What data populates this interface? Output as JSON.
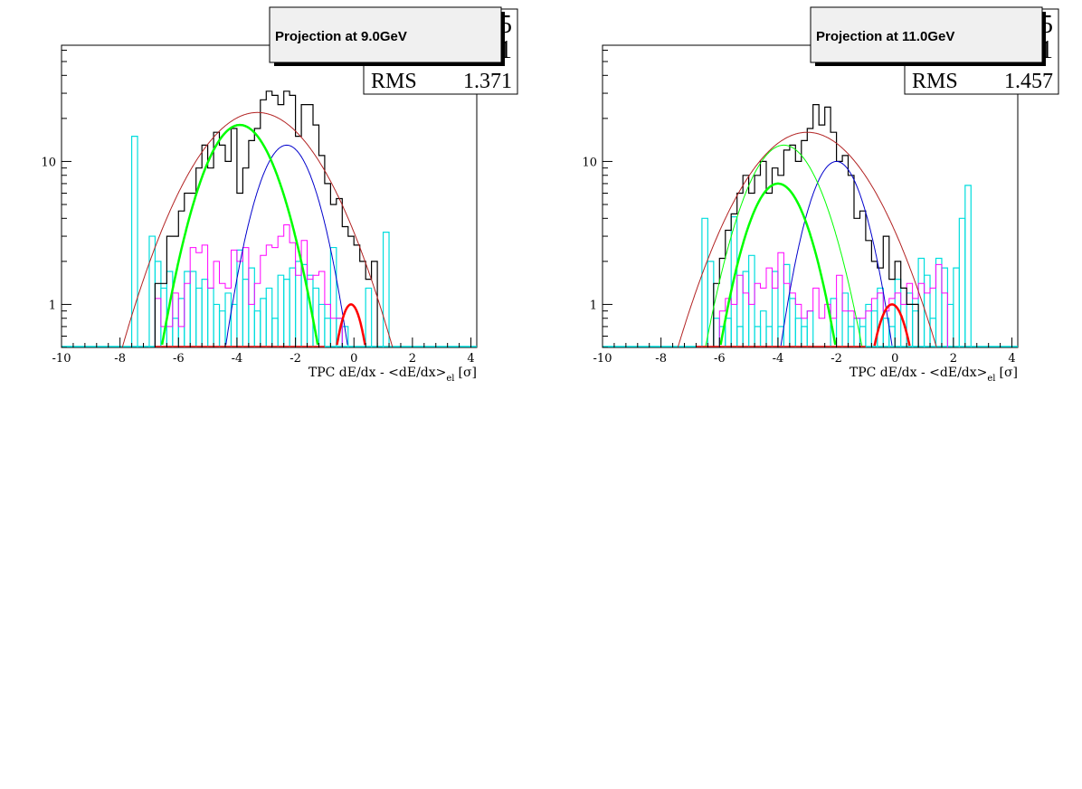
{
  "panels": [
    {
      "title": "Projection at 9.0GeV",
      "stats": {
        "label": "RMS",
        "value": "1.371"
      },
      "hidden_stat_glyphs": [
        "5",
        "1"
      ]
    },
    {
      "title": "Projection at 11.0GeV",
      "stats": {
        "label": "RMS",
        "value": "1.457"
      },
      "hidden_stat_glyphs": [
        "5",
        "1"
      ]
    }
  ],
  "colors": {
    "data": "#000000",
    "total_fit": "#b22222",
    "pion": "#00ff00",
    "kaon": "#0000cc",
    "electron": "#ff0000",
    "proton_template": "#ff00ff",
    "electron_template": "#00dddd"
  },
  "chart_data": [
    {
      "type": "histogram",
      "title": "Projection at 9.0GeV",
      "xlabel_main": "TPC dE/dx - <dE/dx>",
      "xlabel_sub": "el",
      "xlabel_unit": "[σ]",
      "xlim": [
        -10,
        4.2
      ],
      "ylim": [
        0.5,
        65
      ],
      "log_y": true,
      "x_ticks": [
        -10,
        -8,
        -6,
        -4,
        -2,
        0,
        2,
        4
      ],
      "y_ticks": [
        1,
        10
      ],
      "stats": {
        "RMS": 1.371
      },
      "bin_width": 0.2,
      "data_start": -6.8,
      "data": [
        1.4,
        1.4,
        3.0,
        3.0,
        4.5,
        6.0,
        6.0,
        9.0,
        13.0,
        9.0,
        16.0,
        13.0,
        10.0,
        17.0,
        6.0,
        9.0,
        14.0,
        17.0,
        27.0,
        31.0,
        29.0,
        25.0,
        31.0,
        29.0,
        15.0,
        25.0,
        25.0,
        18.0,
        11.0,
        7.0,
        5.0,
        5.5,
        3.5,
        3.0,
        2.6,
        2.0,
        1.5,
        2.0
      ],
      "proton_start": -6.8,
      "proton": [
        1.1,
        0.7,
        0.7,
        1.2,
        0.7,
        1.4,
        2.5,
        2.3,
        2.6,
        1.3,
        2.0,
        1.4,
        1.3,
        2.4,
        2.0,
        2.5,
        1.0,
        1.4,
        2.2,
        2.6,
        2.5,
        3.0,
        3.6,
        2.7,
        1.6,
        2.8,
        1.5,
        1.6,
        1.7,
        1.0,
        0.8,
        0.8
      ],
      "electron_bins": [
        [
          -7.6,
          15.0
        ],
        [
          -7.0,
          3.0
        ],
        [
          -6.8,
          2.0
        ],
        [
          -6.6,
          1.3
        ],
        [
          -6.4,
          1.7
        ],
        [
          -6.2,
          0.8
        ],
        [
          -6.0,
          1.1
        ],
        [
          -5.8,
          1.7
        ],
        [
          -5.6,
          1.7
        ],
        [
          -5.4,
          1.3
        ],
        [
          -5.2,
          1.5
        ],
        [
          -5.0,
          1.3
        ],
        [
          -4.8,
          1.0
        ],
        [
          -4.6,
          0.9
        ],
        [
          -4.4,
          1.2
        ],
        [
          -4.2,
          1.0
        ],
        [
          -4.0,
          2.4
        ],
        [
          -3.8,
          1.5
        ],
        [
          -3.6,
          1.8
        ],
        [
          -3.4,
          0.9
        ],
        [
          -3.2,
          1.1
        ],
        [
          -3.0,
          1.3
        ],
        [
          -2.8,
          0.8
        ],
        [
          -2.6,
          1.6
        ],
        [
          -2.4,
          1.5
        ],
        [
          -2.2,
          1.8
        ],
        [
          -2.0,
          2.0
        ],
        [
          -1.8,
          1.9
        ],
        [
          -1.6,
          1.6
        ],
        [
          -1.4,
          1.3
        ],
        [
          -1.2,
          1.0
        ],
        [
          -1.0,
          0.8
        ],
        [
          -0.8,
          2.5
        ],
        [
          -0.6,
          0.8
        ],
        [
          -0.4,
          0.7
        ],
        [
          0.4,
          1.3
        ],
        [
          1.0,
          3.2
        ]
      ],
      "fits": {
        "total": {
          "mean": -3.3,
          "sigma": 1.68,
          "amplitude": 22
        },
        "pion": {
          "mean": -3.9,
          "sigma": 1.0,
          "amplitude": 18
        },
        "kaon": {
          "mean": -2.3,
          "sigma": 0.82,
          "amplitude": 13
        },
        "electron": {
          "mean": -0.1,
          "sigma": 0.42,
          "amplitude": 1.0
        }
      }
    },
    {
      "type": "histogram",
      "title": "Projection at 11.0GeV",
      "xlabel_main": "TPC dE/dx - <dE/dx>",
      "xlabel_sub": "el",
      "xlabel_unit": "[σ]",
      "xlim": [
        -10,
        4.2
      ],
      "ylim": [
        0.5,
        65
      ],
      "log_y": true,
      "x_ticks": [
        -10,
        -8,
        -6,
        -4,
        -2,
        0,
        2,
        4
      ],
      "y_ticks": [
        1,
        10
      ],
      "stats": {
        "RMS": 1.457
      },
      "bin_width": 0.2,
      "data_start": -6.2,
      "data": [
        1.4,
        2.1,
        3.3,
        4.3,
        6.0,
        8.0,
        6.0,
        8.0,
        10.0,
        6.0,
        9.0,
        8.0,
        12.0,
        13.0,
        10.0,
        14.0,
        17.0,
        25.0,
        18.0,
        24.0,
        16.0,
        10.0,
        11.0,
        8.0,
        4.0,
        4.5,
        2.8,
        2.0,
        1.8,
        3.0,
        1.5,
        2.0,
        1.3,
        1.0,
        1.0
      ],
      "proton_start": -6.0,
      "proton": [
        0.9,
        1.1,
        1.0,
        1.6,
        1.2,
        1.0,
        1.4,
        1.3,
        1.8,
        1.3,
        2.3,
        1.4,
        1.2,
        1.0,
        0.8,
        0.9,
        1.3,
        0.8,
        1.0,
        0.8,
        1.6,
        0.9,
        0.9,
        0.8,
        0.8,
        0.9,
        1.1,
        1.2,
        0.9,
        1.1,
        1.2,
        1.0,
        1.4,
        1.1,
        1.4,
        1.2,
        1.3,
        1.9,
        1.2
      ],
      "electron_bins": [
        [
          -6.6,
          4.0
        ],
        [
          -6.4,
          2.0
        ],
        [
          -6.2,
          0.8
        ],
        [
          -6.0,
          0.7
        ],
        [
          -5.8,
          0.8
        ],
        [
          -5.6,
          4.1
        ],
        [
          -5.4,
          0.7
        ],
        [
          -5.2,
          1.7
        ],
        [
          -5.0,
          2.2
        ],
        [
          -4.8,
          0.7
        ],
        [
          -4.6,
          0.9
        ],
        [
          -4.4,
          0.7
        ],
        [
          -4.2,
          1.7
        ],
        [
          -4.0,
          0.7
        ],
        [
          -3.8,
          1.9
        ],
        [
          -3.6,
          1.1
        ],
        [
          -3.4,
          0.8
        ],
        [
          -3.2,
          0.7
        ],
        [
          -3.0,
          0.9
        ],
        [
          -2.2,
          1.1
        ],
        [
          -1.8,
          1.2
        ],
        [
          -1.6,
          0.7
        ],
        [
          -1.4,
          0.8
        ],
        [
          -1.2,
          0.7
        ],
        [
          -1.0,
          1.0
        ],
        [
          -0.8,
          0.9
        ],
        [
          -0.6,
          1.3
        ],
        [
          -0.4,
          0.8
        ],
        [
          -0.2,
          0.7
        ],
        [
          0.0,
          1.5
        ],
        [
          0.4,
          1.2
        ],
        [
          0.6,
          0.9
        ],
        [
          0.8,
          2.1
        ],
        [
          1.0,
          1.6
        ],
        [
          1.2,
          0.8
        ],
        [
          1.4,
          2.1
        ],
        [
          1.6,
          1.8
        ],
        [
          1.8,
          1.0
        ],
        [
          2.0,
          1.8
        ],
        [
          2.2,
          4.0
        ],
        [
          2.4,
          6.8
        ]
      ],
      "fits": {
        "total": {
          "mean": -3.0,
          "sigma": 1.68,
          "amplitude": 16
        },
        "pion": {
          "mean": -3.8,
          "sigma": 1.05,
          "amplitude": 13
        },
        "pion_bold": {
          "mean": -4.0,
          "sigma": 0.86,
          "amplitude": 7
        },
        "kaon": {
          "mean": -2.0,
          "sigma": 0.78,
          "amplitude": 10
        },
        "electron": {
          "mean": -0.1,
          "sigma": 0.52,
          "amplitude": 1.0
        }
      }
    }
  ]
}
